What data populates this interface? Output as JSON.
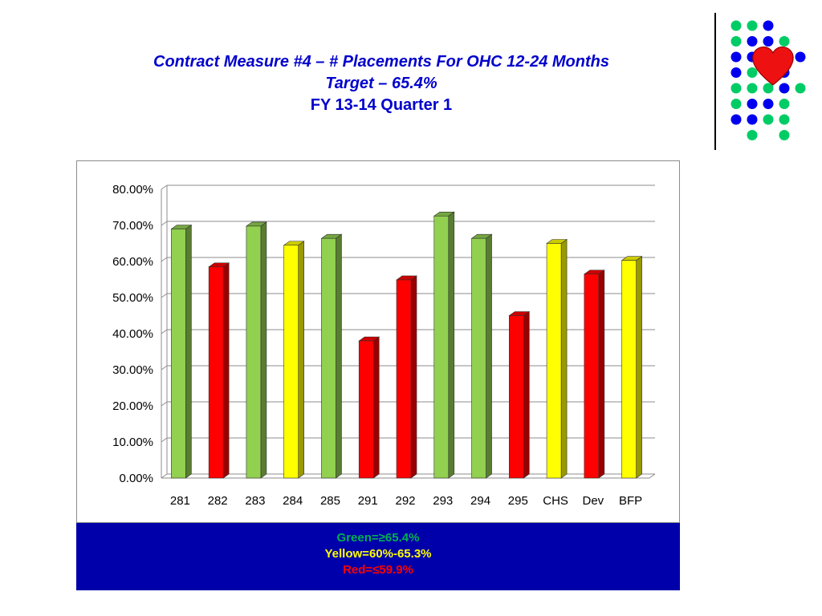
{
  "header": {
    "title_line1": "Contract Measure #4 – # Placements For OHC 12-24 Months",
    "title_line2": "Target – 65.4%",
    "title_line3": "FY 13-14 Quarter 1"
  },
  "legend": {
    "green": "Green=≥65.4%",
    "yellow": "Yellow=60%-65.3%",
    "red": "Red=≤59.9%"
  },
  "colors": {
    "green": "#92d050",
    "yellow": "#ffff00",
    "red": "#ff0000",
    "title_blue": "#0000cc",
    "legend_bg": "#0000aa",
    "logo_blue": "#0000ee",
    "logo_green": "#00cc66",
    "heart": "#ee1111"
  },
  "chart_data": {
    "type": "bar",
    "categories": [
      "281",
      "282",
      "283",
      "284",
      "285",
      "291",
      "292",
      "293",
      "294",
      "295",
      "CHS",
      "Dev",
      "BFP"
    ],
    "values": [
      69.0,
      58.5,
      69.8,
      64.5,
      66.4,
      38.0,
      54.9,
      72.6,
      66.4,
      45.0,
      65.0,
      56.5,
      60.3
    ],
    "status": [
      "green",
      "red",
      "green",
      "yellow",
      "green",
      "red",
      "red",
      "green",
      "green",
      "red",
      "yellow",
      "red",
      "yellow"
    ],
    "yticks": [
      "0.00%",
      "10.00%",
      "20.00%",
      "30.00%",
      "40.00%",
      "50.00%",
      "60.00%",
      "70.00%",
      "80.00%"
    ],
    "ylim": [
      0,
      80
    ],
    "grid": true,
    "style": "3d-column"
  }
}
